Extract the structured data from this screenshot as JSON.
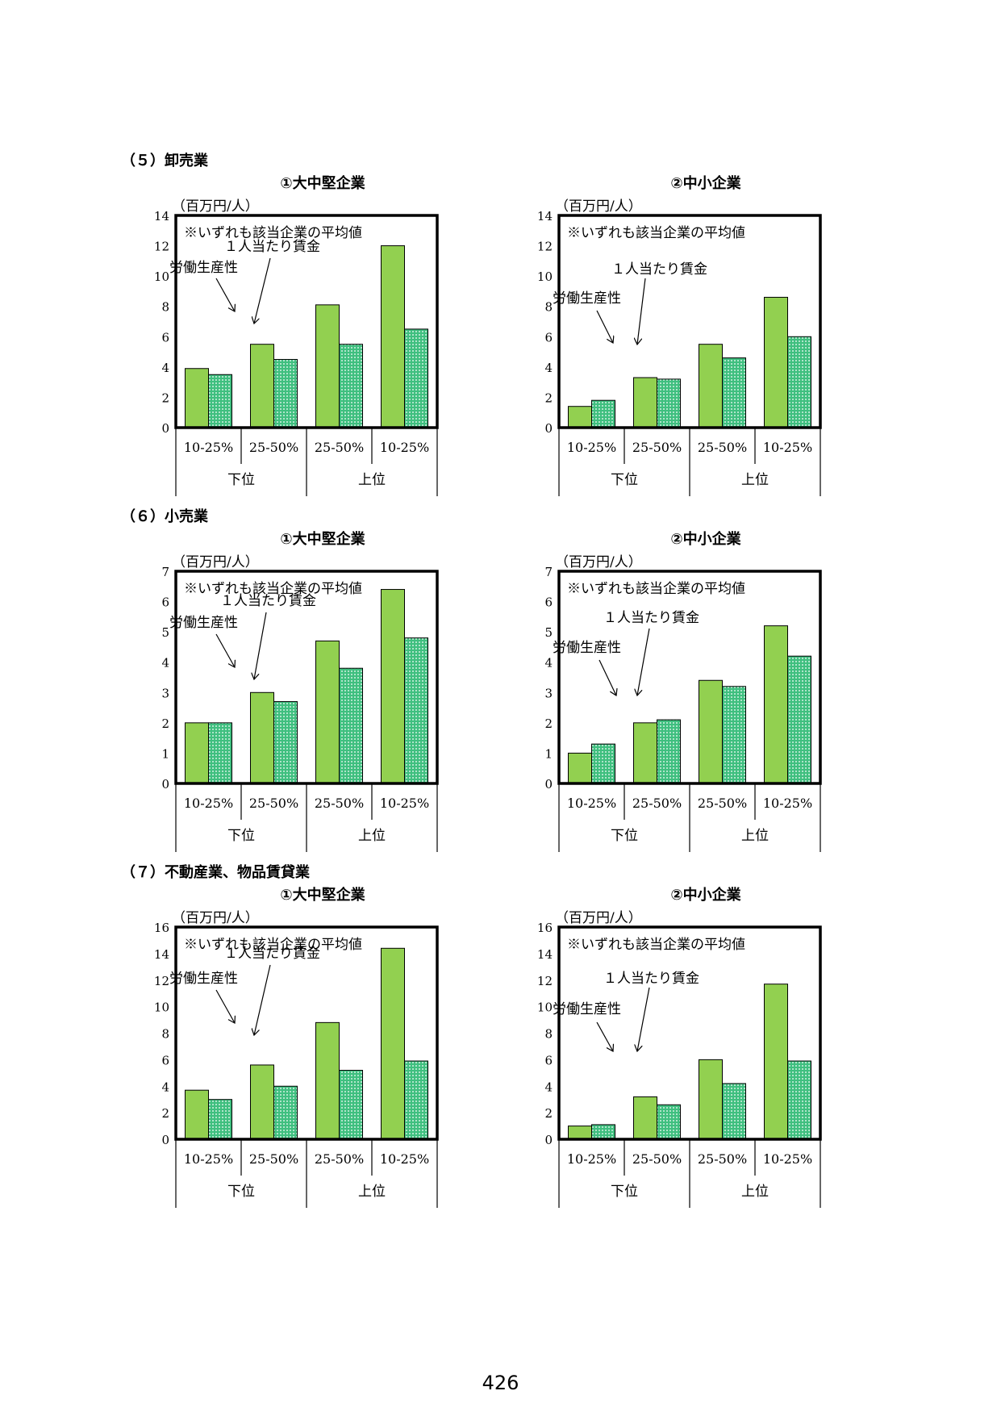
{
  "sections": [
    {
      "title": "（５）卸売業"
    },
    {
      "title": "（６）小売業"
    },
    {
      "title": "（７）不動産業、物品賃貸業"
    }
  ],
  "page_number": "426",
  "colors": {
    "productivity": "#92d050",
    "wage": "#3fbf7f",
    "wage_dot": "#ffffff",
    "axis": "#000000"
  },
  "chart_data": [
    {
      "type": "bar",
      "title": "①大中堅企業",
      "unit": "（百万円/人）",
      "note": "※いずれも該当企業の平均値",
      "ylim": [
        0,
        14
      ],
      "yticks": [
        "0",
        "2",
        "4",
        "6",
        "8",
        "10",
        "12",
        "14"
      ],
      "categories": [
        "10-25%",
        "25-50%",
        "25-50%",
        "10-25%"
      ],
      "groups": [
        "下位",
        "上位"
      ],
      "annotations": {
        "productivity": "労働生産性",
        "wage": "１人当たり賃金"
      },
      "series": [
        {
          "name": "労働生産性",
          "values": [
            3.9,
            5.5,
            8.1,
            12.0
          ]
        },
        {
          "name": "１人当たり賃金",
          "values": [
            3.5,
            4.5,
            5.5,
            6.5
          ]
        }
      ]
    },
    {
      "type": "bar",
      "title": "②中小企業",
      "unit": "（百万円/人）",
      "note": "※いずれも該当企業の平均値",
      "ylim": [
        0,
        14
      ],
      "yticks": [
        "0",
        "2",
        "4",
        "6",
        "8",
        "10",
        "12",
        "14"
      ],
      "categories": [
        "10-25%",
        "25-50%",
        "25-50%",
        "10-25%"
      ],
      "groups": [
        "下位",
        "上位"
      ],
      "annotations": {
        "productivity": "労働生産性",
        "wage": "１人当たり賃金"
      },
      "series": [
        {
          "name": "労働生産性",
          "values": [
            1.4,
            3.3,
            5.5,
            8.6
          ]
        },
        {
          "name": "１人当たり賃金",
          "values": [
            1.8,
            3.2,
            4.6,
            6.0
          ]
        }
      ]
    },
    {
      "type": "bar",
      "title": "①大中堅企業",
      "unit": "（百万円/人）",
      "note": "※いずれも該当企業の平均値",
      "ylim": [
        0,
        7
      ],
      "yticks": [
        "0",
        "1",
        "2",
        "3",
        "4",
        "5",
        "6",
        "7"
      ],
      "categories": [
        "10-25%",
        "25-50%",
        "25-50%",
        "10-25%"
      ],
      "groups": [
        "下位",
        "上位"
      ],
      "annotations": {
        "productivity": "労働生産性",
        "wage": "１人当たり賃金"
      },
      "series": [
        {
          "name": "労働生産性",
          "values": [
            2.0,
            3.0,
            4.7,
            6.4
          ]
        },
        {
          "name": "１人当たり賃金",
          "values": [
            2.0,
            2.7,
            3.8,
            4.8
          ]
        }
      ]
    },
    {
      "type": "bar",
      "title": "②中小企業",
      "unit": "（百万円/人）",
      "note": "※いずれも該当企業の平均値",
      "ylim": [
        0,
        7
      ],
      "yticks": [
        "0",
        "1",
        "2",
        "3",
        "4",
        "5",
        "6",
        "7"
      ],
      "categories": [
        "10-25%",
        "25-50%",
        "25-50%",
        "10-25%"
      ],
      "groups": [
        "下位",
        "上位"
      ],
      "annotations": {
        "productivity": "労働生産性",
        "wage": "１人当たり賃金"
      },
      "series": [
        {
          "name": "労働生産性",
          "values": [
            1.0,
            2.0,
            3.4,
            5.2
          ]
        },
        {
          "name": "１人当たり賃金",
          "values": [
            1.3,
            2.1,
            3.2,
            4.2
          ]
        }
      ]
    },
    {
      "type": "bar",
      "title": "①大中堅企業",
      "unit": "（百万円/人）",
      "note": "※いずれも該当企業の平均値",
      "ylim": [
        0,
        16
      ],
      "yticks": [
        "0",
        "2",
        "4",
        "6",
        "8",
        "10",
        "12",
        "14",
        "16"
      ],
      "categories": [
        "10-25%",
        "25-50%",
        "25-50%",
        "10-25%"
      ],
      "groups": [
        "下位",
        "上位"
      ],
      "annotations": {
        "productivity": "労働生産性",
        "wage": "１人当たり賃金"
      },
      "series": [
        {
          "name": "労働生産性",
          "values": [
            3.7,
            5.6,
            8.8,
            14.4
          ]
        },
        {
          "name": "１人当たり賃金",
          "values": [
            3.0,
            4.0,
            5.2,
            5.9
          ]
        }
      ]
    },
    {
      "type": "bar",
      "title": "②中小企業",
      "unit": "（百万円/人）",
      "note": "※いずれも該当企業の平均値",
      "ylim": [
        0,
        16
      ],
      "yticks": [
        "0",
        "2",
        "4",
        "6",
        "8",
        "10",
        "12",
        "14",
        "16"
      ],
      "categories": [
        "10-25%",
        "25-50%",
        "25-50%",
        "10-25%"
      ],
      "groups": [
        "下位",
        "上位"
      ],
      "annotations": {
        "productivity": "労働生産性",
        "wage": "１人当たり賃金"
      },
      "series": [
        {
          "name": "労働生産性",
          "values": [
            1.0,
            3.2,
            6.0,
            11.7
          ]
        },
        {
          "name": "１人当たり賃金",
          "values": [
            1.1,
            2.6,
            4.2,
            5.9
          ]
        }
      ]
    }
  ]
}
